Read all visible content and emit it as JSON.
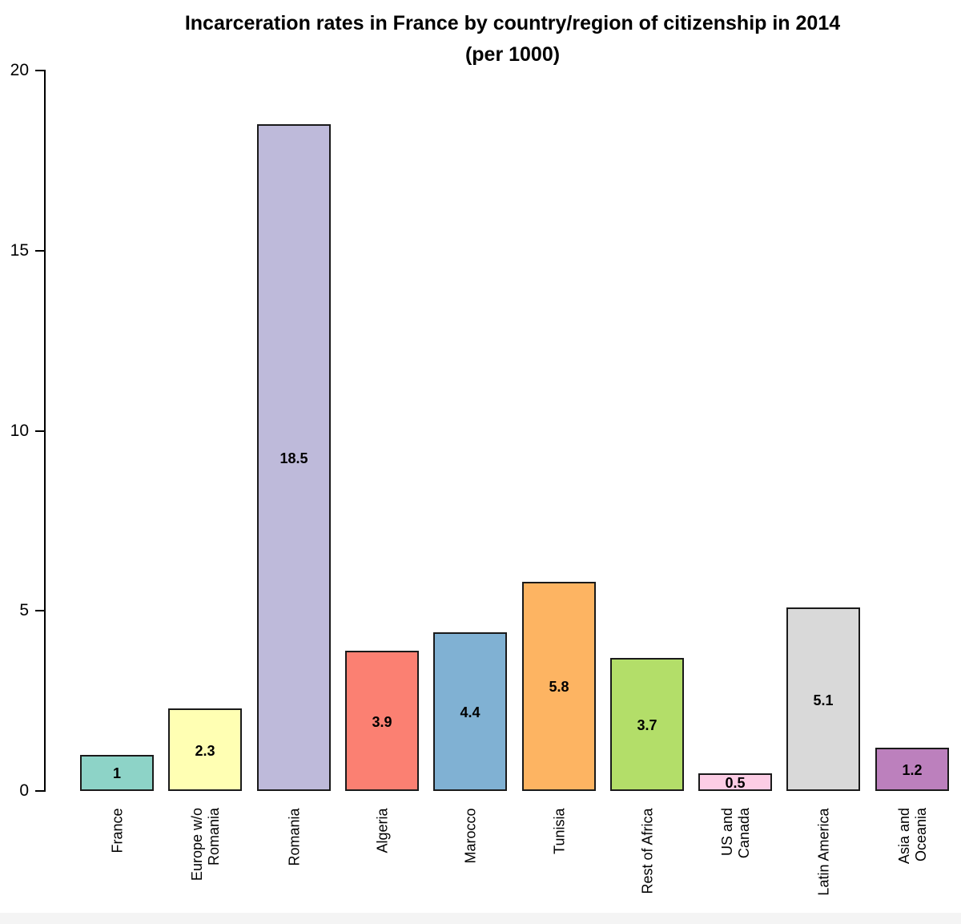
{
  "page": {
    "background_color": "#ffffff",
    "footer_strip_color": "#f4f4f4"
  },
  "chart_data": {
    "type": "bar",
    "title": "Incarceration rates in France by country/region of citizenship in 2014",
    "subtitle": "(per 1000)",
    "categories": [
      "France",
      "Europe w/o\nRomania",
      "Romania",
      "Algeria",
      "Marocco",
      "Tunisia",
      "Rest of Africa",
      "US and\nCanada",
      "Latin America",
      "Asia and\nOceania"
    ],
    "values": [
      1,
      2.3,
      18.5,
      3.9,
      4.4,
      5.8,
      3.7,
      0.5,
      5.1,
      1.2
    ],
    "value_labels": [
      "1",
      "2.3",
      "18.5",
      "3.9",
      "4.4",
      "5.8",
      "3.7",
      "0.5",
      "5.1",
      "1.2"
    ],
    "bar_colors": [
      "#8DD3C7",
      "#FFFFB3",
      "#BEBADA",
      "#FB8072",
      "#80B1D3",
      "#FDB462",
      "#B3DE69",
      "#FCCDE5",
      "#D9D9D9",
      "#BC80BD"
    ],
    "bar_border_color": "#1a1a1a",
    "y_ticks": [
      0,
      5,
      10,
      15,
      20
    ],
    "y_tick_labels": [
      "0",
      "5",
      "10",
      "15",
      "20"
    ],
    "ylim": [
      0,
      20
    ],
    "xlabel": "",
    "ylabel": "",
    "grid": false,
    "legend": false,
    "value_label_position": "inside-middle",
    "x_label_rotation_deg": 90
  }
}
